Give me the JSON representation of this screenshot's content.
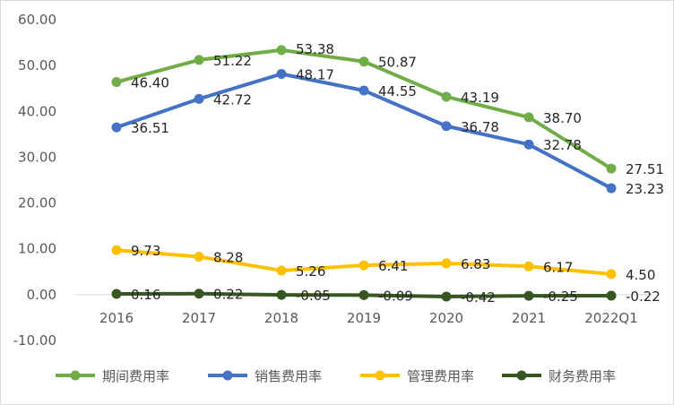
{
  "chart_data": {
    "type": "line",
    "title": "",
    "xlabel": "",
    "ylabel": "",
    "categories": [
      "2016",
      "2017",
      "2018",
      "2019",
      "2020",
      "2021",
      "2022Q1"
    ],
    "y_ticks": [
      "60.00",
      "50.00",
      "40.00",
      "30.00",
      "20.00",
      "10.00",
      "0.00",
      "-10.00"
    ],
    "ylim": [
      -10,
      60
    ],
    "grid": false,
    "legend_position": "bottom",
    "series": [
      {
        "name": "期间费用率",
        "color": "#70ad47",
        "values": [
          46.4,
          51.22,
          53.38,
          50.87,
          43.19,
          38.7,
          27.51
        ],
        "labels": [
          "46.40",
          "51.22",
          "53.38",
          "50.87",
          "43.19",
          "38.70",
          "27.51"
        ]
      },
      {
        "name": "销售费用率",
        "color": "#4472c4",
        "values": [
          36.51,
          42.72,
          48.17,
          44.55,
          36.78,
          32.78,
          23.23
        ],
        "labels": [
          "36.51",
          "42.72",
          "48.17",
          "44.55",
          "36.78",
          "32.78",
          "23.23"
        ]
      },
      {
        "name": "管理费用率",
        "color": "#ffc000",
        "values": [
          9.73,
          8.28,
          5.26,
          6.41,
          6.83,
          6.17,
          4.5
        ],
        "labels": [
          "9.73",
          "8.28",
          "5.26",
          "6.41",
          "6.83",
          "6.17",
          "4.50"
        ]
      },
      {
        "name": "财务费用率",
        "color": "#375623",
        "values": [
          0.16,
          0.22,
          -0.05,
          -0.09,
          -0.42,
          -0.25,
          -0.22
        ],
        "labels": [
          "0.16",
          "0.22",
          "-0.05",
          "-0.09",
          "-0.42",
          "-0.25",
          "-0.22"
        ]
      }
    ]
  }
}
